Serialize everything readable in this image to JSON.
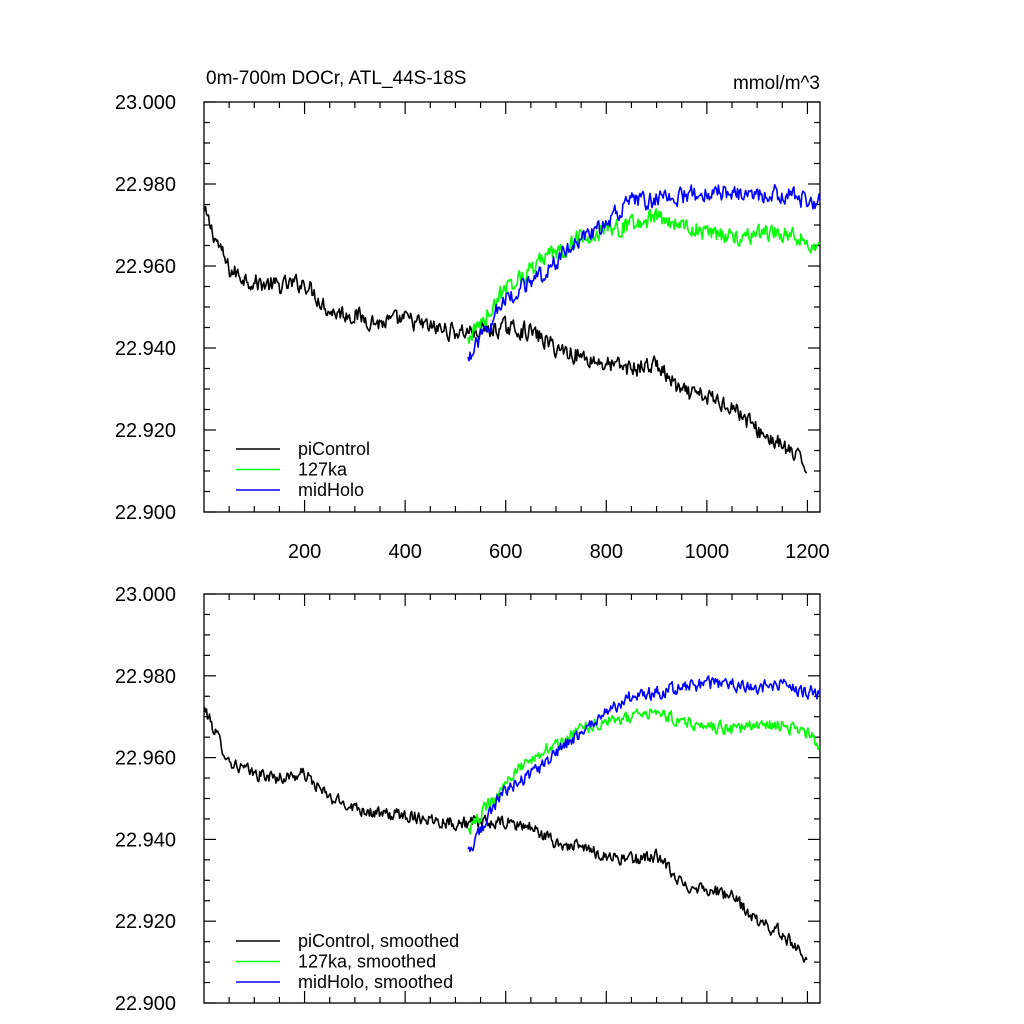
{
  "chart_data": [
    {
      "type": "line",
      "title": "0m-700m DOCr, ATL_44S-18S",
      "units_label": "mmol/m^3",
      "xlabel": "",
      "ylabel": "",
      "xlim": [
        0,
        1225
      ],
      "ylim": [
        22.9,
        23.0
      ],
      "x_ticks": [
        200,
        400,
        600,
        800,
        1000,
        1200
      ],
      "x_tick_labels": [
        "200",
        "400",
        "600",
        "800",
        "1000",
        "1200"
      ],
      "y_ticks": [
        22.9,
        22.92,
        22.94,
        22.96,
        22.98,
        23.0
      ],
      "y_tick_labels": [
        "22.900",
        "22.920",
        "22.940",
        "22.960",
        "22.980",
        "23.000"
      ],
      "grid": false,
      "legend_position": "bottom-left",
      "series": [
        {
          "name": "piControl",
          "color": "#000000",
          "x": [
            1,
            50,
            100,
            150,
            200,
            250,
            300,
            350,
            400,
            450,
            500,
            550,
            600,
            650,
            700,
            750,
            800,
            850,
            900,
            950,
            1000,
            1050,
            1100,
            1150,
            1200
          ],
          "y": [
            22.973,
            22.959,
            22.956,
            22.955,
            22.956,
            22.949,
            22.948,
            22.946,
            22.947,
            22.945,
            22.944,
            22.944,
            22.945,
            22.944,
            22.94,
            22.938,
            22.936,
            22.935,
            22.936,
            22.929,
            22.928,
            22.926,
            22.92,
            22.916,
            22.911
          ]
        },
        {
          "name": "127ka",
          "color": "#00ff00",
          "x": [
            525,
            550,
            575,
            600,
            625,
            650,
            675,
            700,
            725,
            750,
            775,
            800,
            850,
            900,
            950,
            1000,
            1050,
            1100,
            1150,
            1200,
            1225
          ],
          "y": [
            22.942,
            22.946,
            22.95,
            22.955,
            22.957,
            22.959,
            22.962,
            22.963,
            22.965,
            22.967,
            22.968,
            22.969,
            22.97,
            22.972,
            22.97,
            22.968,
            22.967,
            22.968,
            22.968,
            22.966,
            22.963
          ]
        },
        {
          "name": "midHolo",
          "color": "#0000ff",
          "x": [
            525,
            550,
            575,
            600,
            625,
            650,
            675,
            700,
            725,
            750,
            775,
            800,
            850,
            900,
            950,
            1000,
            1050,
            1100,
            1150,
            1200,
            1225
          ],
          "y": [
            22.937,
            22.942,
            22.948,
            22.952,
            22.954,
            22.956,
            22.958,
            22.961,
            22.964,
            22.966,
            22.968,
            22.971,
            22.976,
            22.976,
            22.977,
            22.978,
            22.978,
            22.977,
            22.978,
            22.976,
            22.976
          ]
        }
      ]
    },
    {
      "type": "line",
      "title": "",
      "xlabel": "",
      "ylabel": "",
      "xlim": [
        0,
        1225
      ],
      "ylim": [
        22.9,
        23.0
      ],
      "x_ticks": [
        200,
        400,
        600,
        800,
        1000,
        1200
      ],
      "y_ticks": [
        22.9,
        22.92,
        22.94,
        22.96,
        22.98,
        23.0
      ],
      "y_tick_labels": [
        "22.900",
        "22.920",
        "22.940",
        "22.960",
        "22.980",
        "23.000"
      ],
      "grid": false,
      "legend_position": "bottom-left",
      "series": [
        {
          "name": "piControl, smoothed",
          "color": "#000000",
          "x": [
            1,
            50,
            100,
            150,
            200,
            250,
            300,
            350,
            400,
            450,
            500,
            550,
            600,
            650,
            700,
            750,
            800,
            850,
            900,
            950,
            1000,
            1050,
            1100,
            1150,
            1200
          ],
          "y": [
            22.972,
            22.959,
            22.956,
            22.955,
            22.956,
            22.95,
            22.948,
            22.946,
            22.946,
            22.945,
            22.944,
            22.944,
            22.944,
            22.943,
            22.939,
            22.938,
            22.936,
            22.935,
            22.936,
            22.929,
            22.928,
            22.926,
            22.92,
            22.917,
            22.911
          ]
        },
        {
          "name": "127ka, smoothed",
          "color": "#00ff00",
          "x": [
            525,
            550,
            575,
            600,
            625,
            650,
            675,
            700,
            725,
            750,
            775,
            800,
            850,
            900,
            950,
            1000,
            1050,
            1100,
            1150,
            1200,
            1225
          ],
          "y": [
            22.942,
            22.946,
            22.95,
            22.954,
            22.957,
            22.959,
            22.962,
            22.963,
            22.965,
            22.967,
            22.968,
            22.969,
            22.97,
            22.971,
            22.969,
            22.968,
            22.967,
            22.968,
            22.968,
            22.966,
            22.963
          ]
        },
        {
          "name": "midHolo, smoothed",
          "color": "#0000ff",
          "x": [
            525,
            550,
            575,
            600,
            625,
            650,
            675,
            700,
            725,
            750,
            775,
            800,
            850,
            900,
            950,
            1000,
            1050,
            1100,
            1150,
            1200,
            1225
          ],
          "y": [
            22.937,
            22.942,
            22.948,
            22.952,
            22.954,
            22.956,
            22.958,
            22.961,
            22.964,
            22.966,
            22.968,
            22.971,
            22.975,
            22.976,
            22.977,
            22.978,
            22.978,
            22.977,
            22.978,
            22.976,
            22.976
          ]
        }
      ]
    }
  ]
}
